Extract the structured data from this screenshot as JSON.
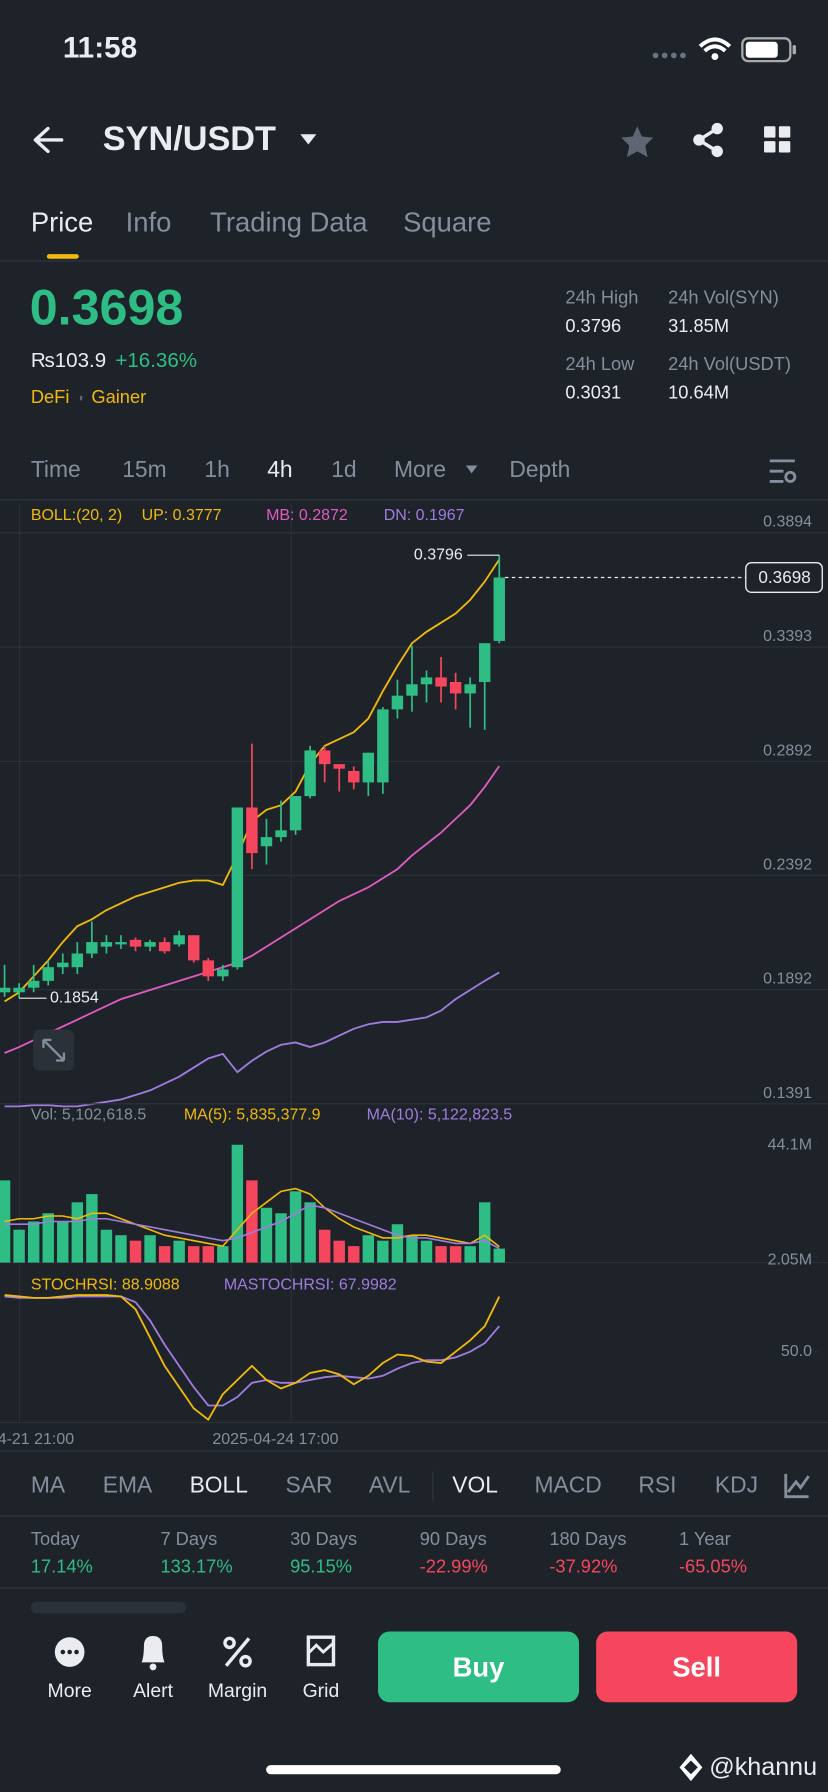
{
  "status": {
    "time": "11:58"
  },
  "header": {
    "pair": "SYN/USDT"
  },
  "tabs": [
    "Price",
    "Info",
    "Trading Data",
    "Square"
  ],
  "price": {
    "last": "0.3698",
    "local": "₨103.9",
    "change": "+16.36%",
    "tags": [
      "DeFi",
      "Gainer"
    ],
    "stats": [
      {
        "label": "24h High",
        "value": "0.3796"
      },
      {
        "label": "24h Vol(SYN)",
        "value": "31.85M"
      },
      {
        "label": "24h Low",
        "value": "0.3031"
      },
      {
        "label": "24h Vol(USDT)",
        "value": "10.64M"
      }
    ]
  },
  "intervals": [
    "Time",
    "15m",
    "1h",
    "4h",
    "1d",
    "More",
    "Depth"
  ],
  "chart_data": {
    "type": "candlestick",
    "legend": {
      "boll": "BOLL:(20, 2)",
      "up": "UP: 0.3777",
      "mb": "MB: 0.2872",
      "dn": "DN: 0.1967"
    },
    "x_labels": [
      "4-21 21:00",
      "2025-04-24 17:00"
    ],
    "ylim": [
      0.1391,
      0.4024
    ],
    "yticks": [
      0.3894,
      0.3393,
      0.2892,
      0.2392,
      0.1892,
      0.1391
    ],
    "last": 0.3698,
    "colors": {
      "up": "#2ebd85",
      "down": "#f6465d",
      "boll_up": "#f0b90b",
      "boll_mb": "#e05bc0",
      "boll_dn": "#a07ce0"
    },
    "open": [
      0.188,
      0.188,
      0.19,
      0.193,
      0.199,
      0.199,
      0.205,
      0.208,
      0.209,
      0.211,
      0.208,
      0.21,
      0.209,
      0.213,
      0.202,
      0.195,
      0.199,
      0.269,
      0.252,
      0.256,
      0.259,
      0.274,
      0.294,
      0.288,
      0.285,
      0.28,
      0.28,
      0.312,
      0.318,
      0.323,
      0.326,
      0.324,
      0.319,
      0.324,
      0.342
    ],
    "close": [
      0.19,
      0.19,
      0.193,
      0.199,
      0.201,
      0.205,
      0.21,
      0.21,
      0.21,
      0.208,
      0.21,
      0.206,
      0.213,
      0.202,
      0.195,
      0.198,
      0.269,
      0.249,
      0.256,
      0.259,
      0.274,
      0.294,
      0.288,
      0.286,
      0.28,
      0.293,
      0.312,
      0.318,
      0.323,
      0.326,
      0.322,
      0.319,
      0.323,
      0.341,
      0.3698
    ],
    "high": [
      0.2,
      0.192,
      0.2,
      0.202,
      0.205,
      0.21,
      0.219,
      0.213,
      0.213,
      0.212,
      0.211,
      0.212,
      0.215,
      0.213,
      0.203,
      0.2,
      0.269,
      0.297,
      0.264,
      0.272,
      0.274,
      0.296,
      0.296,
      0.288,
      0.287,
      0.293,
      0.313,
      0.325,
      0.34,
      0.329,
      0.335,
      0.328,
      0.326,
      0.341,
      0.3796
    ],
    "low": [
      0.186,
      0.1854,
      0.188,
      0.191,
      0.196,
      0.196,
      0.203,
      0.205,
      0.207,
      0.206,
      0.206,
      0.205,
      0.208,
      0.201,
      0.193,
      0.193,
      0.198,
      0.242,
      0.244,
      0.254,
      0.257,
      0.273,
      0.28,
      0.276,
      0.277,
      0.274,
      0.275,
      0.308,
      0.311,
      0.315,
      0.315,
      0.312,
      0.304,
      0.303,
      0.341
    ],
    "boll_up": [
      0.184,
      0.188,
      0.195,
      0.202,
      0.21,
      0.217,
      0.22,
      0.224,
      0.227,
      0.23,
      0.232,
      0.234,
      0.236,
      0.237,
      0.237,
      0.235,
      0.248,
      0.263,
      0.268,
      0.27,
      0.276,
      0.288,
      0.296,
      0.299,
      0.302,
      0.308,
      0.32,
      0.331,
      0.341,
      0.346,
      0.35,
      0.354,
      0.36,
      0.368,
      0.3777
    ],
    "boll_mb": [
      0.1614,
      0.164,
      0.167,
      0.17,
      0.173,
      0.176,
      0.179,
      0.182,
      0.185,
      0.187,
      0.189,
      0.191,
      0.193,
      0.195,
      0.197,
      0.199,
      0.201,
      0.204,
      0.208,
      0.212,
      0.216,
      0.22,
      0.224,
      0.228,
      0.231,
      0.234,
      0.238,
      0.242,
      0.248,
      0.253,
      0.258,
      0.264,
      0.27,
      0.278,
      0.2872
    ],
    "boll_dn": [
      0.138,
      0.138,
      0.1385,
      0.1385,
      0.138,
      0.138,
      0.139,
      0.14,
      0.141,
      0.143,
      0.145,
      0.148,
      0.151,
      0.155,
      0.159,
      0.161,
      0.153,
      0.158,
      0.162,
      0.165,
      0.166,
      0.164,
      0.166,
      0.169,
      0.172,
      0.174,
      0.175,
      0.175,
      0.176,
      0.177,
      0.18,
      0.185,
      0.189,
      0.193,
      0.1967
    ],
    "volume": {
      "legend": {
        "vol": "Vol: 5,102,618.5",
        "ma5": "MA(5): 5,835,377.9",
        "ma10": "MA(10): 5,122,823.5"
      },
      "ylim": [
        0,
        50
      ],
      "yticks": [
        {
          "value": 44.1,
          "label": "44.1M"
        },
        {
          "value": 2.05,
          "label": "2.05M"
        }
      ],
      "values": [
        30,
        12,
        15,
        18,
        15,
        22,
        25,
        12,
        10,
        8,
        10,
        6,
        8,
        6,
        6,
        6,
        43,
        30,
        20,
        18,
        26,
        22,
        12,
        8,
        6,
        10,
        8,
        14,
        10,
        8,
        6,
        6,
        6,
        22,
        5.1026
      ],
      "ma5": [
        15,
        16,
        16,
        17,
        17,
        16,
        18,
        18,
        16,
        14,
        12,
        10,
        9,
        8,
        7,
        6,
        12,
        18,
        22,
        26,
        27,
        25,
        20,
        16,
        13,
        11,
        9,
        9,
        10,
        10,
        9,
        8,
        7,
        10,
        5.8354
      ],
      "ma10": [
        14,
        14,
        14,
        15,
        15,
        15,
        16,
        16,
        15,
        14,
        13,
        12,
        11,
        10,
        9,
        8,
        9,
        11,
        13,
        15,
        18,
        21,
        20,
        18,
        16,
        14,
        12,
        10,
        9,
        9,
        8,
        7,
        7,
        8,
        5.1228
      ]
    },
    "stoch": {
      "legend": {
        "k": "STOCHRSI: 88.9088",
        "d": "MASTOCHRSI: 67.9982"
      },
      "ylim": [
        0,
        100
      ],
      "yticks": [
        {
          "value": 50,
          "label": "50.0"
        }
      ],
      "k": [
        90,
        89,
        88,
        88,
        89,
        90,
        90,
        90,
        89,
        80,
        60,
        40,
        25,
        10,
        2,
        20,
        30,
        40,
        30,
        24,
        28,
        35,
        37,
        34,
        27,
        33,
        42,
        48,
        47,
        43,
        42,
        50,
        58,
        68,
        88.9088
      ],
      "d": [
        89,
        88,
        88,
        88,
        88,
        89,
        89,
        89,
        89,
        85,
        72,
        55,
        40,
        25,
        12,
        12,
        18,
        28,
        30,
        28,
        28,
        30,
        32,
        33,
        32,
        31,
        33,
        38,
        42,
        44,
        44,
        46,
        50,
        56,
        67.9982
      ]
    }
  },
  "indicators": [
    "MA",
    "EMA",
    "BOLL",
    "SAR",
    "AVL",
    "VOL",
    "MACD",
    "RSI",
    "KDJ"
  ],
  "performance": [
    {
      "label": "Today",
      "value": "17.14%"
    },
    {
      "label": "7 Days",
      "value": "133.17%"
    },
    {
      "label": "30 Days",
      "value": "95.15%"
    },
    {
      "label": "90 Days",
      "value": "-22.99%"
    },
    {
      "label": "180 Days",
      "value": "-37.92%"
    },
    {
      "label": "1 Year",
      "value": "-65.05%"
    }
  ],
  "nav": [
    "More",
    "Alert",
    "Margin",
    "Grid"
  ],
  "actions": {
    "buy": "Buy",
    "sell": "Sell"
  },
  "watermark": "@khannu"
}
